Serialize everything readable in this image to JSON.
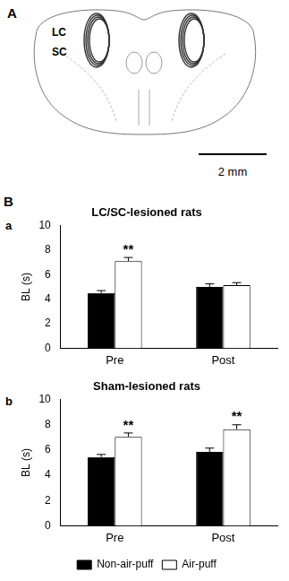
{
  "panel_a": {
    "label": "A",
    "regions": [
      "LC",
      "SC"
    ],
    "scale_bar": "2 mm"
  },
  "panel_b": {
    "label": "B"
  },
  "chart_data": [
    {
      "type": "bar",
      "label": "a",
      "title": "LC/SC-lesioned rats",
      "ylabel": "BL (s)",
      "categories": [
        "Pre",
        "Post"
      ],
      "series": [
        {
          "name": "Non-air-puff",
          "color": "#000000",
          "values": [
            4.5,
            5.0
          ],
          "errors": [
            0.2,
            0.25
          ]
        },
        {
          "name": "Air-puff",
          "color": "#ffffff",
          "values": [
            7.1,
            5.15
          ],
          "errors": [
            0.3,
            0.2
          ]
        }
      ],
      "annotations": [
        {
          "category": "Pre",
          "series": "Air-puff",
          "text": "**"
        }
      ],
      "ylim": [
        0,
        10
      ],
      "yticks": [
        0,
        2,
        4,
        6,
        8,
        10
      ],
      "grid": false
    },
    {
      "type": "bar",
      "label": "b",
      "title": "Sham-lesioned rats",
      "ylabel": "BL (s)",
      "categories": [
        "Pre",
        "Post"
      ],
      "series": [
        {
          "name": "Non-air-puff",
          "color": "#000000",
          "values": [
            5.45,
            5.85
          ],
          "errors": [
            0.2,
            0.3
          ]
        },
        {
          "name": "Air-puff",
          "color": "#ffffff",
          "values": [
            7.05,
            7.65
          ],
          "errors": [
            0.3,
            0.35
          ]
        }
      ],
      "annotations": [
        {
          "category": "Pre",
          "series": "Air-puff",
          "text": "**"
        },
        {
          "category": "Post",
          "series": "Air-puff",
          "text": "**"
        }
      ],
      "ylim": [
        0,
        10
      ],
      "yticks": [
        0,
        2,
        4,
        6,
        8,
        10
      ],
      "grid": false,
      "legend": "bottom"
    }
  ]
}
